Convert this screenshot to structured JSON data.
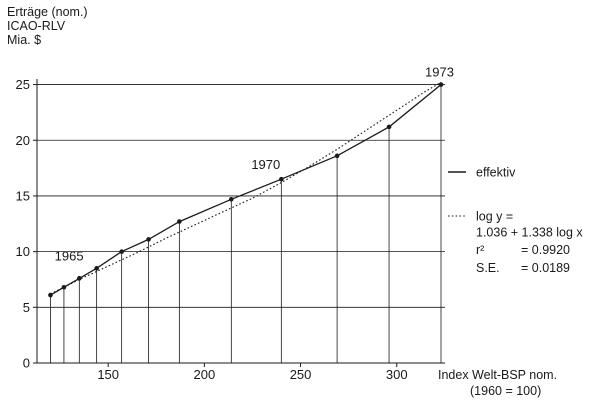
{
  "chart_data": {
    "type": "line",
    "ylabel_lines": [
      "Erträge (nom.)",
      "ICAO-RLV",
      "Mia. $"
    ],
    "xlabel_lines": [
      "Index Welt-BSP nom.",
      "(1960 = 100)"
    ],
    "xlim": [
      113,
      323
    ],
    "ylim": [
      0,
      25.5
    ],
    "x_ticks": [
      150,
      200,
      250,
      300
    ],
    "y_ticks": [
      0,
      5,
      10,
      15,
      20,
      25
    ],
    "x_tick_labels": [
      "150",
      "200",
      "250",
      "300"
    ],
    "y_tick_labels": [
      "0",
      "5",
      "10",
      "15",
      "20",
      "25"
    ],
    "series": [
      {
        "name": "effektiv",
        "style": "solid",
        "x": [
          120,
          127,
          135,
          144,
          157,
          171,
          187,
          214,
          240,
          269,
          296,
          323
        ],
        "y": [
          6.1,
          6.8,
          7.6,
          8.5,
          10.0,
          11.1,
          12.7,
          14.7,
          16.5,
          18.6,
          21.2,
          25.0
        ]
      },
      {
        "name": "log y = 1.036 + 1.338 log x",
        "style": "dotted",
        "x": [
          120,
          135,
          150,
          165,
          180,
          195,
          210,
          225,
          240,
          255,
          270,
          285,
          300,
          315,
          323
        ],
        "y": [
          6.2,
          7.5,
          8.7,
          9.9,
          11.2,
          12.4,
          13.6,
          14.8,
          16.2,
          17.7,
          19.3,
          21.0,
          22.7,
          24.4,
          25.2
        ]
      }
    ],
    "annotations": [
      {
        "text": "1965",
        "x": 144,
        "y": 8.5
      },
      {
        "text": "1970",
        "x": 240,
        "y": 16.5
      },
      {
        "text": "1973",
        "x": 323,
        "y": 25.0
      }
    ],
    "legend": {
      "solid_label": "effektiv",
      "dotted_lines": [
        "log y =",
        "1.036 + 1.338 log x"
      ],
      "stats": [
        {
          "name": "r²",
          "value": "= 0.9920"
        },
        {
          "name": "S.E.",
          "value": "= 0.0189"
        }
      ]
    },
    "grid": "vertical droplines at each data point, horizontal lines at y ticks",
    "colors": {
      "ink": "#1a1a1a"
    }
  }
}
